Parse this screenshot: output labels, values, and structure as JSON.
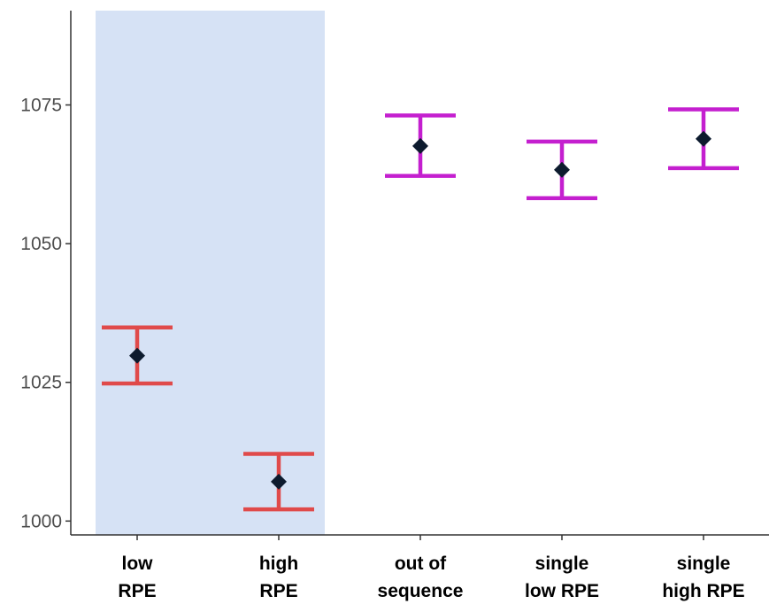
{
  "chart_data": {
    "type": "scatter",
    "title": "",
    "xlabel": "",
    "ylabel": "",
    "categories": [
      "low\nRPE",
      "high\nRPE",
      "out of\nsequence",
      "single\nlow RPE",
      "single\nhigh RPE"
    ],
    "points": [
      {
        "category": "low\nRPE",
        "mean": 1029.8,
        "lower": 1024.8,
        "upper": 1034.9,
        "color": "#e04a4a"
      },
      {
        "category": "high\nRPE",
        "mean": 1007.1,
        "lower": 1002.1,
        "upper": 1012.1,
        "color": "#e04a4a"
      },
      {
        "category": "out of\nsequence",
        "mean": 1067.6,
        "lower": 1062.2,
        "upper": 1073.1,
        "color": "#c41fcf"
      },
      {
        "category": "single\nlow RPE",
        "mean": 1063.3,
        "lower": 1058.2,
        "upper": 1068.4,
        "color": "#c41fcf"
      },
      {
        "category": "single\nhigh RPE",
        "mean": 1068.9,
        "lower": 1063.6,
        "upper": 1074.2,
        "color": "#c41fcf"
      }
    ],
    "ylim": [
      997.5,
      1092
    ],
    "yticks": [
      1000,
      1025,
      1050,
      1075
    ],
    "highlight": {
      "from_category": 0,
      "to_category": 1,
      "color": "#d6e2f5",
      "ymin": 997.5,
      "ymax": 1092
    },
    "marker": {
      "shape": "diamond",
      "color": "#0d1b2e"
    },
    "grid": false,
    "legend": "none"
  }
}
